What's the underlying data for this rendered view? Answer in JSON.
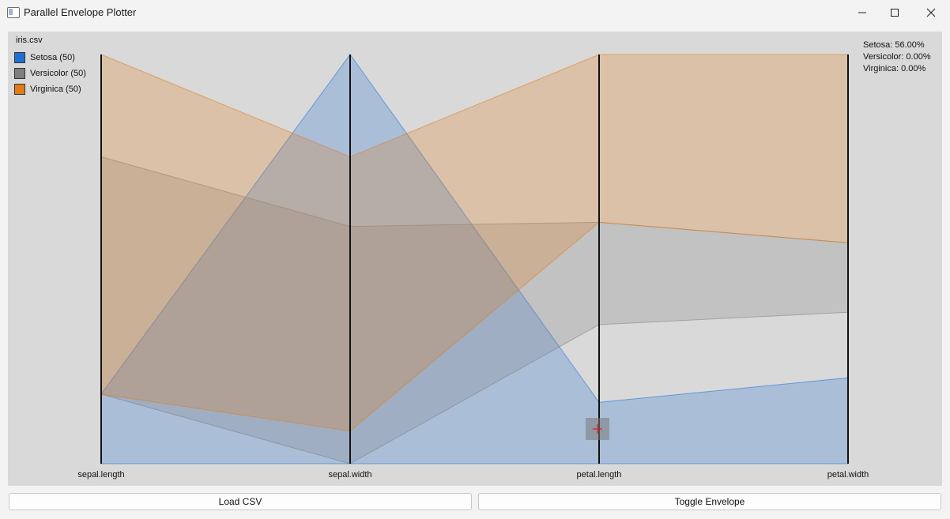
{
  "window": {
    "title": "Parallel Envelope Plotter",
    "controls": {
      "minimize": "minimize",
      "maximize": "maximize",
      "close": "close"
    }
  },
  "plot": {
    "file_name": "iris.csv",
    "legend": [
      {
        "label": "Setosa (50)",
        "color": "#1f6fd6"
      },
      {
        "label": "Versicolor (50)",
        "color": "#7f7f7f"
      },
      {
        "label": "Virginica (50)",
        "color": "#e07b19"
      }
    ],
    "stats": [
      {
        "text": "Setosa: 56.00%"
      },
      {
        "text": "Versicolor: 0.00%"
      },
      {
        "text": "Virginica: 0.00%"
      }
    ]
  },
  "chart_data": {
    "type": "parallel-coordinates-envelope",
    "axes": [
      "sepal.length",
      "sepal.width",
      "petal.length",
      "petal.width"
    ],
    "scale": "each axis normalized 0 (bottom) to 1 (top)",
    "series": [
      {
        "name": "Setosa",
        "color": "#1f6fd6",
        "min": [
          0.0,
          0.0,
          0.0,
          0.0
        ],
        "max": [
          0.17,
          1.0,
          0.15,
          0.21
        ]
      },
      {
        "name": "Versicolor",
        "color": "#7f7f7f",
        "min": [
          0.17,
          0.0,
          0.34,
          0.37
        ],
        "max": [
          0.75,
          0.58,
          0.59,
          0.54
        ]
      },
      {
        "name": "Virginica",
        "color": "#e07b19",
        "min": [
          0.17,
          0.08,
          0.59,
          0.54
        ],
        "max": [
          1.0,
          0.75,
          1.0,
          1.0
        ]
      }
    ]
  },
  "buttons": {
    "load": "Load CSV",
    "toggle": "Toggle Envelope"
  }
}
